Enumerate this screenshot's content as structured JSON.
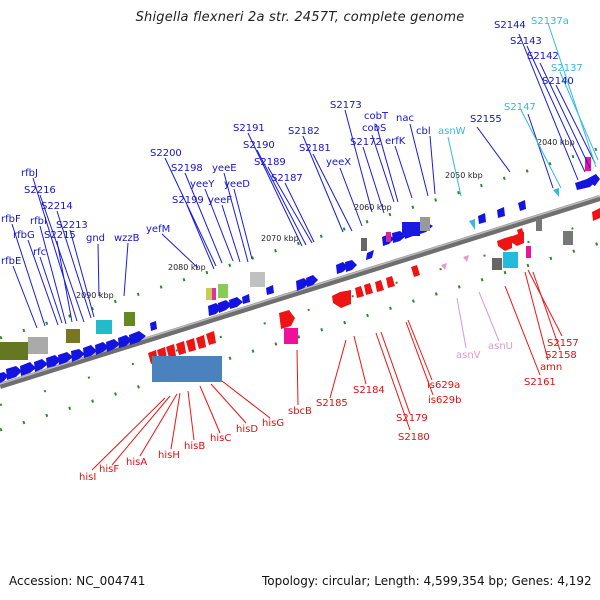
{
  "title": "Shigella flexneri 2a str. 2457T, complete genome",
  "footer": {
    "accession": "Accession: NC_004741",
    "summary": "Topology: circular; Length: 4,599,354 bp; Genes: 4,192"
  },
  "colors": {
    "forward": "#1010dd",
    "reverse": "#ee1111",
    "trna": "#33bbdd",
    "reverse_trna": "#dd88cc",
    "backbone": "#777777"
  },
  "scale_ticks": [
    "2040 kbp",
    "2050 kbp",
    "2060 kbp",
    "2070 kbp",
    "2080 kbp",
    "2090 kbp"
  ],
  "labels_top": [
    "S2137a",
    "S2144",
    "S2143",
    "S2142",
    "S2137",
    "S2140",
    "S2147",
    "S2155",
    "cbl",
    "nac",
    "asnW",
    "cobT",
    "cobS",
    "erfK",
    "S2173",
    "S2172",
    "S2182",
    "S2181",
    "yeeX",
    "S2191",
    "S2190",
    "S2189",
    "S2187",
    "S2200",
    "S2198",
    "yeeE",
    "yeeY",
    "yeeD",
    "S2199",
    "yeeF",
    "yefM",
    "wzzB",
    "gnd",
    "rfbJ",
    "S2216",
    "S2214",
    "S2213",
    "rfbF",
    "rfbI",
    "rfbG",
    "S2215",
    "rfc",
    "rfbE"
  ],
  "labels_bottom": [
    "asnV",
    "asnU",
    "S2157",
    "S2158",
    "amn",
    "S2161",
    "is629a",
    "is629b",
    "S2184",
    "S2179",
    "S2180",
    "S2185",
    "sbcB",
    "hisG",
    "hisD",
    "hisC",
    "hisB",
    "hisH",
    "hisA",
    "hisF",
    "hisI"
  ]
}
